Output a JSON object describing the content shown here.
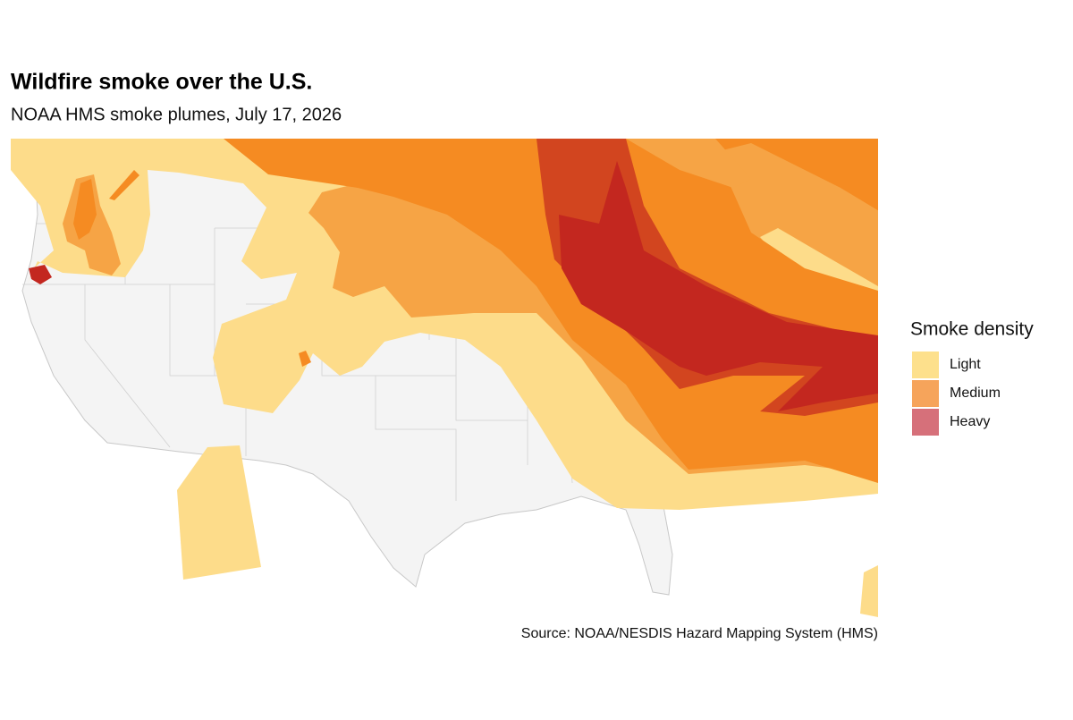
{
  "title": "Wildfire smoke over the U.S.",
  "subtitle": "NOAA HMS smoke plumes, July 17, 2026",
  "legend": {
    "title": "Smoke density",
    "items": [
      {
        "label": "Light",
        "color": "#fde08c"
      },
      {
        "label": "Medium",
        "color": "#f6a45b"
      },
      {
        "label": "Heavy",
        "color": "#d6707a"
      }
    ]
  },
  "source": "Source: NOAA/NESDIS Hazard Mapping System (HMS)"
}
